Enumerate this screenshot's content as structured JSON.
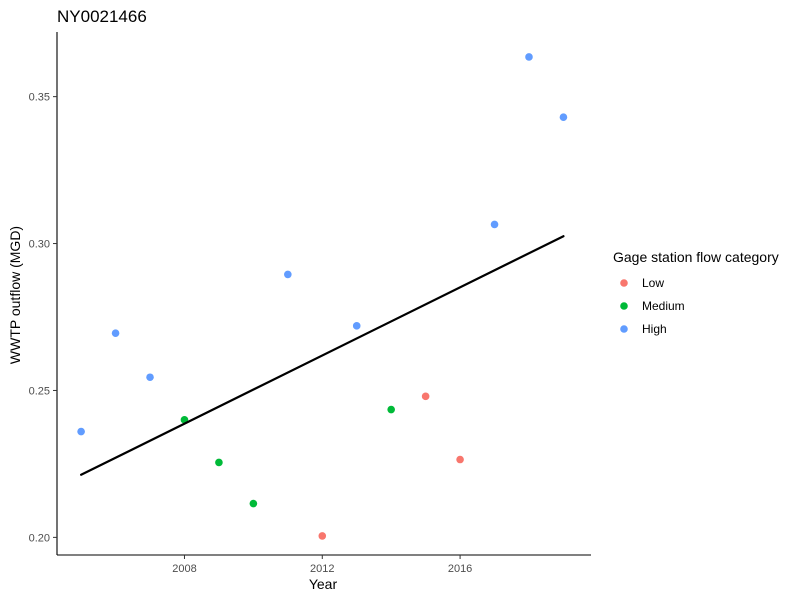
{
  "chart_data": {
    "type": "scatter",
    "title": "NY0021466",
    "xlabel": "Year",
    "ylabel": "WWTP outflow (MGD)",
    "xlim": [
      2004.3,
      2019.8
    ],
    "ylim": [
      0.194,
      0.372
    ],
    "x_ticks": [
      2008,
      2012,
      2016
    ],
    "y_ticks": [
      0.2,
      0.25,
      0.3,
      0.35
    ],
    "x_tick_labels": [
      "2008",
      "2012",
      "2016"
    ],
    "y_tick_labels": [
      "0.20",
      "0.25",
      "0.30",
      "0.35"
    ],
    "grid": false,
    "legend": {
      "title": "Gage station flow category",
      "position": "right",
      "entries": [
        {
          "label": "Low",
          "color": "#F8766D"
        },
        {
          "label": "Medium",
          "color": "#00BA38"
        },
        {
          "label": "High",
          "color": "#619CFF"
        }
      ]
    },
    "series": [
      {
        "name": "Low",
        "color": "#F8766D",
        "points": [
          {
            "x": 2012,
            "y": 0.2005
          },
          {
            "x": 2015,
            "y": 0.248
          },
          {
            "x": 2016,
            "y": 0.2265
          }
        ]
      },
      {
        "name": "Medium",
        "color": "#00BA38",
        "points": [
          {
            "x": 2008,
            "y": 0.24
          },
          {
            "x": 2009,
            "y": 0.2255
          },
          {
            "x": 2010,
            "y": 0.2115
          },
          {
            "x": 2014,
            "y": 0.2435
          }
        ]
      },
      {
        "name": "High",
        "color": "#619CFF",
        "points": [
          {
            "x": 2005,
            "y": 0.236
          },
          {
            "x": 2006,
            "y": 0.2695
          },
          {
            "x": 2007,
            "y": 0.2545
          },
          {
            "x": 2011,
            "y": 0.2895
          },
          {
            "x": 2013,
            "y": 0.272
          },
          {
            "x": 2017,
            "y": 0.3065
          },
          {
            "x": 2018,
            "y": 0.3635
          },
          {
            "x": 2019,
            "y": 0.343
          }
        ]
      }
    ],
    "trend_line": {
      "x": [
        2005,
        2019
      ],
      "y": [
        0.2213,
        0.3025
      ],
      "color": "#000000"
    }
  }
}
